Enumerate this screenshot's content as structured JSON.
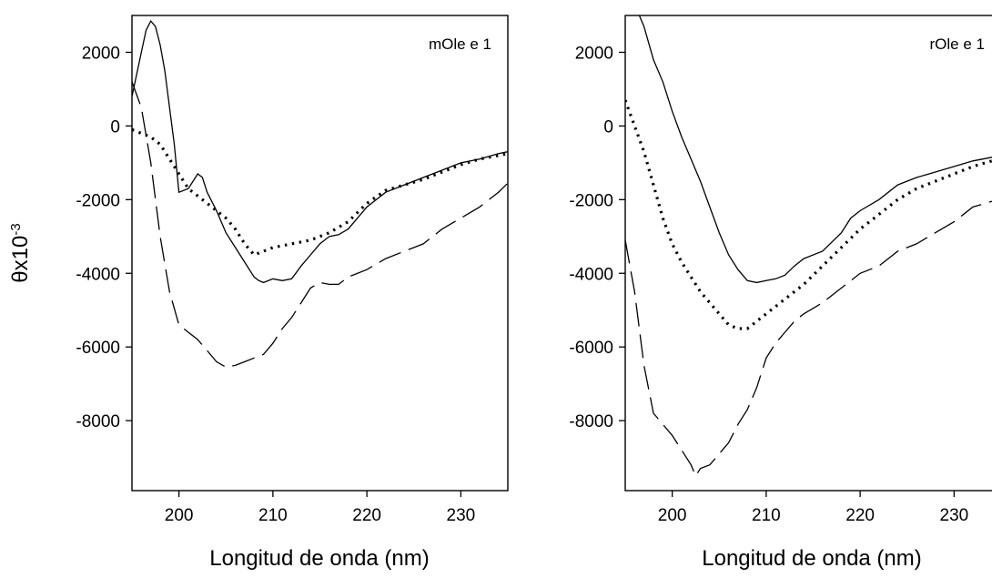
{
  "colors": {
    "line": "#000000",
    "background": "#ffffff"
  },
  "chart_data": [
    {
      "type": "line",
      "panel_label": "mOle e 1",
      "xlabel": "Longitud de onda (nm)",
      "ylabel_base": "θx10",
      "ylabel_exp": "-3",
      "xlim": [
        195,
        235
      ],
      "ylim": [
        -9900,
        3000
      ],
      "xticks": [
        "200",
        "210",
        "220",
        "230"
      ],
      "yticks": [
        "2000",
        "0",
        "-2000",
        "-4000",
        "-6000",
        "-8000"
      ],
      "grid": false,
      "series": [
        {
          "style": "solid",
          "x": [
            195,
            196,
            196.5,
            197,
            197.5,
            198,
            198.5,
            199,
            199.5,
            200,
            201,
            201.5,
            202,
            202.5,
            203,
            204,
            205,
            206,
            207,
            208,
            208.5,
            209,
            210,
            211,
            212,
            213,
            214,
            215,
            216,
            217,
            218,
            219,
            220,
            222,
            224,
            226,
            228,
            230,
            232,
            234,
            235
          ],
          "y": [
            800,
            2000,
            2600,
            2850,
            2700,
            2200,
            1500,
            500,
            -500,
            -1800,
            -1700,
            -1500,
            -1300,
            -1400,
            -1800,
            -2300,
            -2900,
            -3300,
            -3700,
            -4100,
            -4200,
            -4250,
            -4150,
            -4200,
            -4150,
            -3800,
            -3500,
            -3200,
            -3000,
            -2950,
            -2800,
            -2500,
            -2200,
            -1800,
            -1600,
            -1400,
            -1200,
            -1000,
            -900,
            -750,
            -700
          ]
        },
        {
          "style": "dotted",
          "x": [
            195,
            196,
            197,
            198,
            199,
            200,
            201,
            202,
            203,
            204,
            205,
            206,
            207,
            208,
            209,
            210,
            212,
            214,
            216,
            218,
            220,
            222,
            224,
            226,
            228,
            230,
            232,
            234,
            235
          ],
          "y": [
            -100,
            -200,
            -300,
            -500,
            -900,
            -1300,
            -1700,
            -1900,
            -2100,
            -2300,
            -2500,
            -2800,
            -3200,
            -3500,
            -3400,
            -3300,
            -3200,
            -3100,
            -2900,
            -2600,
            -2100,
            -1750,
            -1600,
            -1450,
            -1250,
            -1050,
            -900,
            -800,
            -750
          ]
        },
        {
          "style": "dashed",
          "x": [
            195,
            196,
            197,
            198,
            199,
            200,
            201,
            202,
            203,
            204,
            205,
            206,
            207,
            208,
            209,
            210,
            211,
            212,
            213,
            214,
            215,
            216,
            217,
            218,
            220,
            222,
            224,
            226,
            228,
            230,
            232,
            234,
            235
          ],
          "y": [
            1200,
            500,
            -1000,
            -3000,
            -4500,
            -5400,
            -5600,
            -5800,
            -6100,
            -6400,
            -6550,
            -6500,
            -6400,
            -6300,
            -6200,
            -5900,
            -5500,
            -5200,
            -4800,
            -4400,
            -4250,
            -4300,
            -4300,
            -4100,
            -3900,
            -3600,
            -3400,
            -3200,
            -2800,
            -2500,
            -2200,
            -1800,
            -1550
          ]
        }
      ]
    },
    {
      "type": "line",
      "panel_label": "rOle e 1",
      "xlabel": "Longitud de onda (nm)",
      "xlim": [
        195,
        235
      ],
      "ylim": [
        -9900,
        3000
      ],
      "xticks": [
        "200",
        "210",
        "220",
        "230"
      ],
      "yticks": [
        "2000",
        "0",
        "-2000",
        "-4000",
        "-6000",
        "-8000"
      ],
      "grid": false,
      "series": [
        {
          "style": "solid",
          "x": [
            196.5,
            197,
            198,
            199,
            200,
            201,
            202,
            203,
            204,
            205,
            206,
            207,
            208,
            209,
            210,
            211,
            212,
            213,
            214,
            216,
            218,
            219,
            220,
            222,
            224,
            226,
            228,
            230,
            232,
            234,
            235
          ],
          "y": [
            3000,
            2700,
            1800,
            1200,
            400,
            -300,
            -900,
            -1500,
            -2200,
            -2900,
            -3500,
            -3900,
            -4200,
            -4250,
            -4200,
            -4150,
            -4050,
            -3800,
            -3600,
            -3400,
            -2900,
            -2500,
            -2300,
            -2000,
            -1600,
            -1400,
            -1250,
            -1100,
            -950,
            -850,
            -800
          ]
        },
        {
          "style": "dotted",
          "x": [
            195,
            196,
            197,
            198,
            199,
            200,
            201,
            202,
            203,
            204,
            205,
            206,
            207,
            208,
            209,
            210,
            211,
            212,
            214,
            216,
            218,
            220,
            222,
            224,
            226,
            228,
            230,
            232,
            234,
            235
          ],
          "y": [
            700,
            0,
            -700,
            -1600,
            -2500,
            -3200,
            -3700,
            -4100,
            -4500,
            -4800,
            -5100,
            -5400,
            -5500,
            -5500,
            -5300,
            -5100,
            -4900,
            -4700,
            -4300,
            -3800,
            -3300,
            -2800,
            -2400,
            -2000,
            -1700,
            -1500,
            -1300,
            -1100,
            -950,
            -850
          ]
        },
        {
          "style": "dashed",
          "x": [
            195,
            196,
            197,
            198,
            199,
            200,
            201,
            202,
            202.5,
            203,
            204,
            205,
            206,
            207,
            208,
            209,
            210,
            211,
            212,
            213,
            214,
            215,
            216,
            217,
            218,
            220,
            222,
            224,
            226,
            228,
            230,
            232,
            234,
            235
          ],
          "y": [
            -3100,
            -4500,
            -6500,
            -7800,
            -8100,
            -8400,
            -8800,
            -9200,
            -9500,
            -9300,
            -9200,
            -8900,
            -8600,
            -8100,
            -7700,
            -7100,
            -6300,
            -5900,
            -5600,
            -5300,
            -5100,
            -4950,
            -4800,
            -4600,
            -4400,
            -4000,
            -3800,
            -3400,
            -3200,
            -2900,
            -2600,
            -2200,
            -2050,
            -2000
          ]
        }
      ]
    }
  ]
}
